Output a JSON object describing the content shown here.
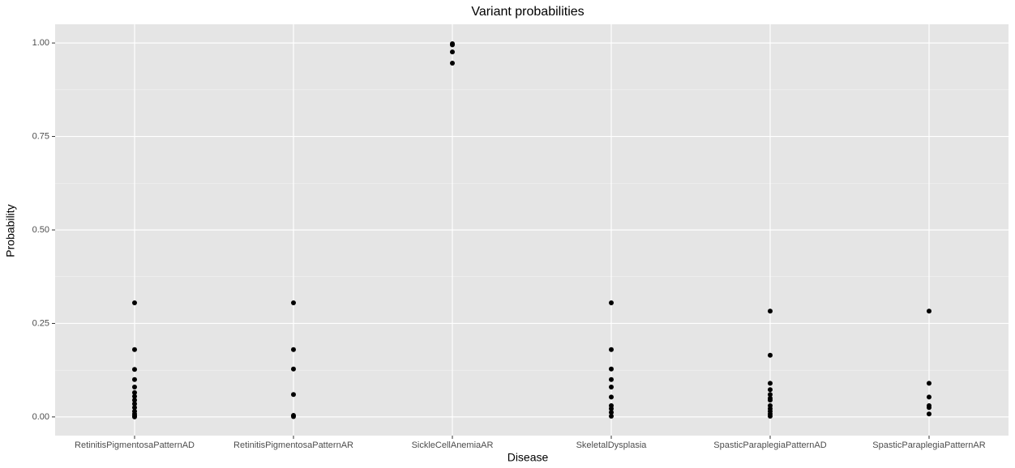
{
  "chart_data": {
    "type": "strip",
    "title": "Variant probabilities",
    "x_label": "Disease",
    "y_label": "Probability",
    "categories": [
      "RetinitisPigmentosaPatternAD",
      "RetinitisPigmentosaPatternAR",
      "SickleCellAnemiaAR",
      "SkeletalDysplasia",
      "SpasticParaplegiaPatternAD",
      "SpasticParaplegiaPatternAR"
    ],
    "values": [
      [
        0.305,
        0.18,
        0.127,
        0.1,
        0.08,
        0.065,
        0.055,
        0.045,
        0.035,
        0.025,
        0.015,
        0.008,
        0.003,
        0.0
      ],
      [
        0.305,
        0.18,
        0.128,
        0.06,
        0.004,
        0.001
      ],
      [
        0.998,
        0.995,
        0.976,
        0.946
      ],
      [
        0.305,
        0.18,
        0.128,
        0.1,
        0.08,
        0.053,
        0.03,
        0.022,
        0.012,
        0.002
      ],
      [
        0.283,
        0.165,
        0.09,
        0.073,
        0.06,
        0.05,
        0.045,
        0.03,
        0.022,
        0.015,
        0.008,
        0.002
      ],
      [
        0.283,
        0.09,
        0.053,
        0.03,
        0.025,
        0.008
      ]
    ],
    "color": "#000000",
    "ylim": [
      -0.05,
      1.05
    ],
    "yticks": [
      {
        "value": 0,
        "label": "0.00"
      },
      {
        "value": 0.25,
        "label": "0.25"
      },
      {
        "value": 0.5,
        "label": "0.50"
      },
      {
        "value": 0.75,
        "label": "0.75"
      },
      {
        "value": 1,
        "label": "1.00"
      }
    ],
    "grid": true
  }
}
